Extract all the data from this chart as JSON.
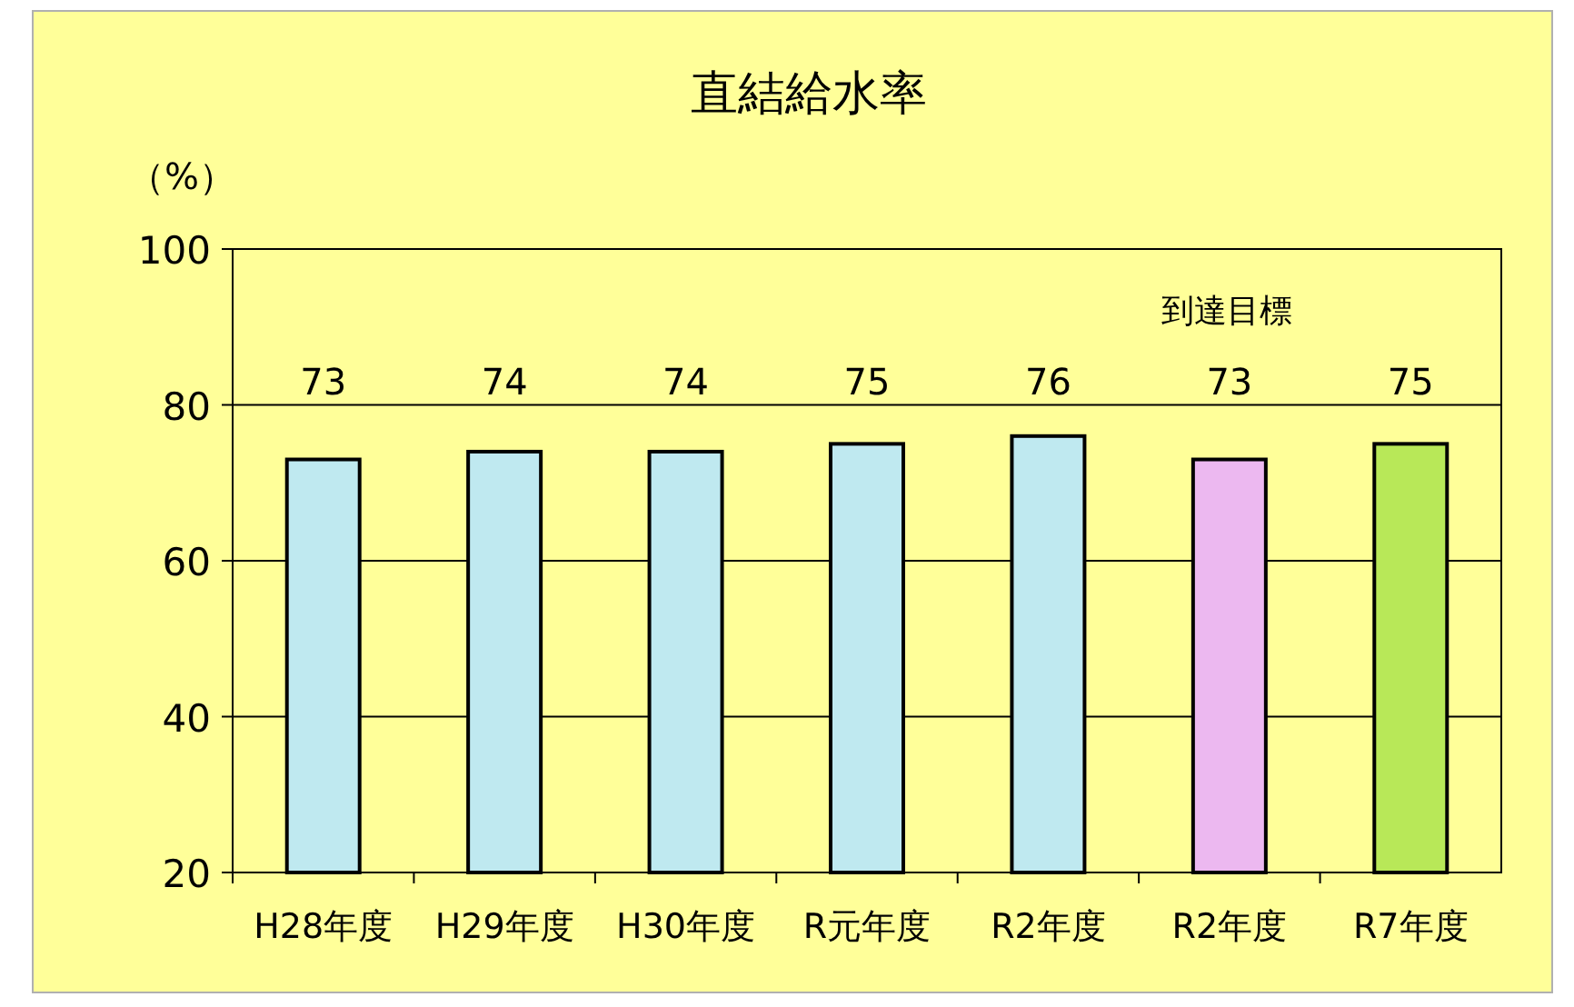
{
  "chart_data": {
    "type": "bar",
    "title": "直結給水率",
    "ylabel": "（%）",
    "categories": [
      "H28年度",
      "H29年度",
      "H30年度",
      "R元年度",
      "R2年度",
      "R2年度",
      "R7年度"
    ],
    "values": [
      73,
      74,
      74,
      75,
      76,
      73,
      75
    ],
    "colors": [
      "#bfe9f0",
      "#bfe9f0",
      "#bfe9f0",
      "#bfe9f0",
      "#bfe9f0",
      "#ecb8f0",
      "#b8e858"
    ],
    "ylim": [
      20,
      100
    ],
    "yticks": [
      20,
      40,
      60,
      80,
      100
    ],
    "grid": "y",
    "data_labels": true,
    "annotations": [
      "到達目標"
    ]
  }
}
